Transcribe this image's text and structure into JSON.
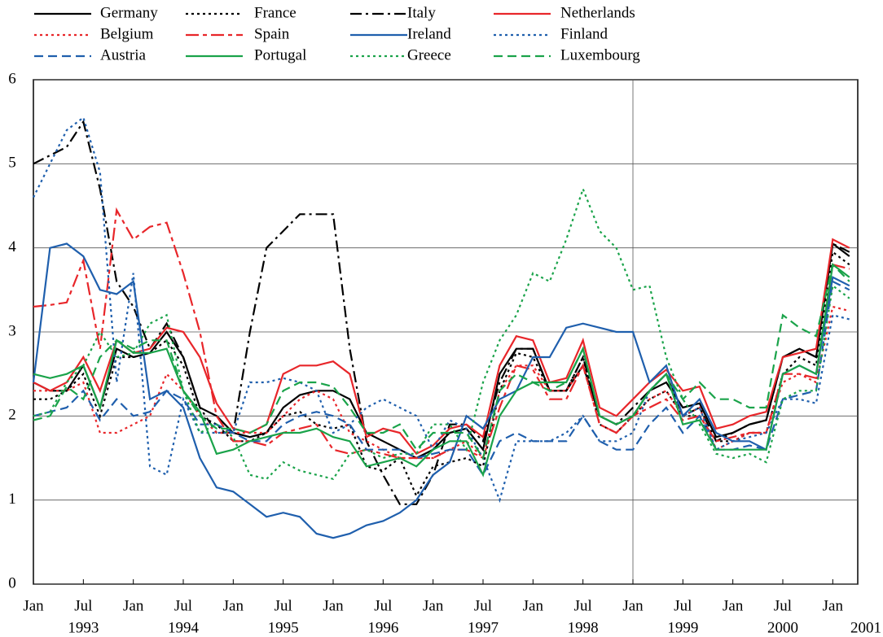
{
  "chart_data": {
    "type": "line",
    "x": [
      "1993-01",
      "1993-03",
      "1993-05",
      "1993-07",
      "1993-09",
      "1993-11",
      "1994-01",
      "1994-03",
      "1994-05",
      "1994-07",
      "1994-09",
      "1994-11",
      "1995-01",
      "1995-03",
      "1995-05",
      "1995-07",
      "1995-09",
      "1995-11",
      "1996-01",
      "1996-03",
      "1996-05",
      "1996-07",
      "1996-09",
      "1996-11",
      "1997-01",
      "1997-03",
      "1997-05",
      "1997-07",
      "1997-09",
      "1997-11",
      "1998-01",
      "1998-03",
      "1998-05",
      "1998-07",
      "1998-09",
      "1998-11",
      "1999-01",
      "1999-03",
      "1999-05",
      "1999-07",
      "1999-09",
      "1999-11",
      "2000-01",
      "2000-03",
      "2000-05",
      "2000-07",
      "2000-09",
      "2000-11",
      "2001-01",
      "2001-03"
    ],
    "xlim": [
      "1993-01",
      "2001-04"
    ],
    "xticks": [
      {
        "value": "1993-01",
        "label": "Jan"
      },
      {
        "value": "1993-07",
        "label": "Jul"
      },
      {
        "value": "1994-01",
        "label": "Jan"
      },
      {
        "value": "1994-07",
        "label": "Jul"
      },
      {
        "value": "1995-01",
        "label": "Jan"
      },
      {
        "value": "1995-07",
        "label": "Jul"
      },
      {
        "value": "1996-01",
        "label": "Jan"
      },
      {
        "value": "1996-07",
        "label": "Jul"
      },
      {
        "value": "1997-01",
        "label": "Jan"
      },
      {
        "value": "1997-07",
        "label": "Jul"
      },
      {
        "value": "1998-01",
        "label": "Jan"
      },
      {
        "value": "1998-07",
        "label": "Jul"
      },
      {
        "value": "1999-01",
        "label": "Jan"
      },
      {
        "value": "1999-07",
        "label": "Jul"
      },
      {
        "value": "2000-01",
        "label": "Jan"
      },
      {
        "value": "2000-07",
        "label": "Jul"
      },
      {
        "value": "2001-01",
        "label": "Jan"
      }
    ],
    "year_labels": [
      {
        "value": "1993-07",
        "label": "1993"
      },
      {
        "value": "1994-07",
        "label": "1994"
      },
      {
        "value": "1995-07",
        "label": "1995"
      },
      {
        "value": "1996-07",
        "label": "1996"
      },
      {
        "value": "1997-07",
        "label": "1997"
      },
      {
        "value": "1998-07",
        "label": "1998"
      },
      {
        "value": "1999-07",
        "label": "1999"
      },
      {
        "value": "2000-07",
        "label": "2000"
      },
      {
        "value": "2001-07",
        "label": "2001"
      }
    ],
    "vline": "1999-01",
    "ylim": [
      0,
      6
    ],
    "yticks": [
      0,
      1,
      2,
      3,
      4,
      5,
      6
    ],
    "grid": true,
    "series": [
      {
        "name": "Germany",
        "color": "#000000",
        "dash": "solid",
        "values": [
          2.4,
          2.3,
          2.3,
          2.6,
          2.1,
          2.8,
          2.7,
          2.75,
          3.0,
          2.7,
          2.1,
          2.0,
          1.8,
          1.75,
          1.8,
          2.1,
          2.25,
          2.3,
          2.3,
          2.2,
          1.8,
          1.7,
          1.6,
          1.5,
          1.6,
          1.8,
          1.85,
          1.6,
          2.5,
          2.8,
          2.8,
          2.3,
          2.3,
          2.6,
          2.0,
          1.9,
          2.0,
          2.3,
          2.4,
          2.1,
          2.15,
          1.75,
          1.8,
          1.9,
          1.95,
          2.7,
          2.8,
          2.7,
          4.05,
          3.9
        ]
      },
      {
        "name": "France",
        "color": "#000000",
        "dash": "dot",
        "values": [
          2.2,
          2.2,
          2.3,
          2.5,
          2.0,
          2.7,
          2.7,
          2.75,
          2.9,
          2.6,
          2.0,
          1.9,
          1.7,
          1.7,
          1.8,
          2.0,
          2.05,
          1.9,
          1.85,
          1.9,
          1.4,
          1.35,
          1.5,
          1.05,
          1.4,
          1.45,
          1.5,
          1.4,
          2.3,
          2.75,
          2.7,
          2.3,
          2.3,
          2.7,
          1.9,
          1.8,
          2.0,
          2.2,
          2.3,
          2.0,
          2.0,
          1.7,
          1.7,
          1.8,
          1.8,
          2.5,
          2.7,
          2.6,
          3.95,
          3.8
        ]
      },
      {
        "name": "Italy",
        "color": "#000000",
        "dash": "dashdot",
        "values": [
          5.0,
          5.1,
          5.2,
          5.5,
          4.7,
          3.6,
          3.3,
          2.8,
          3.1,
          2.7,
          2.1,
          1.8,
          1.8,
          3.0,
          4.0,
          4.2,
          4.4,
          4.4,
          4.4,
          2.8,
          1.7,
          1.3,
          0.95,
          0.95,
          1.3,
          1.9,
          1.9,
          1.7,
          2.4,
          2.8,
          2.8,
          2.3,
          2.3,
          2.7,
          2.0,
          1.9,
          2.1,
          2.3,
          2.5,
          2.0,
          2.1,
          1.7,
          1.8,
          1.9,
          1.95,
          2.7,
          2.8,
          2.7,
          4.05,
          3.95
        ]
      },
      {
        "name": "Netherlands",
        "color": "#e8262a",
        "dash": "solid",
        "values": [
          2.4,
          2.3,
          2.4,
          2.7,
          2.3,
          2.9,
          2.75,
          2.8,
          3.05,
          3.0,
          2.7,
          2.15,
          1.85,
          1.8,
          1.9,
          2.5,
          2.6,
          2.6,
          2.65,
          2.5,
          1.75,
          1.85,
          1.8,
          1.55,
          1.65,
          1.85,
          1.9,
          1.75,
          2.6,
          2.95,
          2.9,
          2.4,
          2.45,
          2.9,
          2.1,
          2.0,
          2.2,
          2.4,
          2.55,
          2.3,
          2.35,
          1.85,
          1.9,
          2.0,
          2.05,
          2.7,
          2.75,
          2.8,
          4.1,
          4.0
        ]
      },
      {
        "name": "Belgium",
        "color": "#e8262a",
        "dash": "dot",
        "values": [
          2.3,
          2.3,
          2.3,
          2.4,
          1.8,
          1.8,
          1.9,
          2.0,
          2.5,
          2.3,
          2.0,
          1.8,
          1.8,
          1.8,
          1.8,
          2.0,
          2.2,
          2.3,
          2.2,
          1.8,
          1.7,
          1.6,
          1.5,
          1.5,
          1.5,
          1.6,
          1.7,
          1.5,
          2.3,
          2.6,
          2.6,
          2.3,
          2.3,
          2.6,
          1.9,
          1.8,
          2.0,
          2.2,
          2.3,
          2.0,
          2.1,
          1.6,
          1.7,
          1.8,
          1.8,
          2.4,
          2.5,
          2.4,
          3.3,
          3.25
        ]
      },
      {
        "name": "Spain",
        "color": "#e8262a",
        "dash": "dashdot2",
        "values": [
          3.3,
          3.32,
          3.35,
          3.85,
          2.8,
          4.45,
          4.1,
          4.25,
          4.3,
          3.7,
          3.0,
          2.0,
          1.7,
          1.7,
          1.65,
          1.8,
          1.85,
          1.9,
          1.6,
          1.55,
          1.6,
          1.55,
          1.5,
          1.5,
          1.5,
          1.6,
          1.6,
          1.5,
          2.1,
          2.6,
          2.55,
          2.2,
          2.2,
          2.6,
          1.9,
          1.8,
          2.0,
          2.1,
          2.2,
          1.95,
          2.0,
          1.7,
          1.75,
          1.8,
          1.8,
          2.5,
          2.5,
          2.45,
          3.8,
          3.75
        ]
      },
      {
        "name": "Ireland",
        "color": "#1f5fad",
        "dash": "solid",
        "values": [
          2.4,
          4.0,
          4.05,
          3.9,
          3.5,
          3.45,
          3.6,
          2.2,
          2.3,
          2.1,
          1.5,
          1.15,
          1.1,
          0.95,
          0.8,
          0.85,
          0.8,
          0.6,
          0.55,
          0.6,
          0.7,
          0.75,
          0.85,
          1.0,
          1.3,
          1.45,
          2.0,
          1.85,
          2.2,
          2.3,
          2.7,
          2.7,
          3.05,
          3.1,
          3.05,
          3.0,
          3.0,
          2.4,
          2.6,
          2.0,
          2.2,
          1.8,
          1.7,
          1.7,
          1.6,
          2.5,
          2.6,
          2.5,
          3.65,
          3.55
        ]
      },
      {
        "name": "Finland",
        "color": "#1f5fad",
        "dash": "dot",
        "values": [
          4.6,
          5.0,
          5.4,
          5.55,
          4.9,
          2.4,
          3.7,
          1.4,
          1.3,
          2.2,
          1.8,
          1.8,
          1.8,
          2.4,
          2.4,
          2.45,
          2.4,
          2.3,
          1.8,
          1.9,
          2.1,
          2.2,
          2.1,
          2.0,
          1.6,
          1.95,
          1.85,
          1.5,
          1.0,
          1.7,
          1.7,
          1.7,
          1.8,
          2.0,
          1.7,
          1.7,
          1.8,
          2.3,
          2.5,
          2.0,
          2.1,
          1.6,
          1.7,
          1.75,
          1.8,
          2.2,
          2.2,
          2.15,
          3.2,
          3.15
        ]
      },
      {
        "name": "Austria",
        "color": "#1f5fad",
        "dash": "dash",
        "values": [
          2.0,
          2.05,
          2.1,
          2.3,
          1.95,
          2.2,
          2.0,
          2.05,
          2.3,
          2.2,
          1.9,
          1.9,
          1.8,
          1.7,
          1.7,
          1.9,
          2.0,
          2.05,
          2.0,
          1.9,
          1.6,
          1.6,
          1.6,
          1.5,
          1.55,
          1.6,
          1.6,
          1.3,
          1.7,
          1.8,
          1.7,
          1.7,
          1.7,
          2.0,
          1.7,
          1.6,
          1.6,
          1.9,
          2.1,
          1.8,
          2.0,
          1.6,
          1.6,
          1.65,
          1.6,
          2.2,
          2.25,
          2.3,
          3.6,
          3.5
        ]
      },
      {
        "name": "Portugal",
        "color": "#1aa34a",
        "dash": "solid",
        "values": [
          2.5,
          2.45,
          2.5,
          2.6,
          2.1,
          2.9,
          2.75,
          2.75,
          2.8,
          2.3,
          2.05,
          1.55,
          1.6,
          1.7,
          1.75,
          1.8,
          1.8,
          1.85,
          1.75,
          1.7,
          1.4,
          1.45,
          1.5,
          1.4,
          1.6,
          1.7,
          1.7,
          1.3,
          2.0,
          2.3,
          2.4,
          2.4,
          2.4,
          2.8,
          2.0,
          1.9,
          2.0,
          2.3,
          2.5,
          1.9,
          1.95,
          1.6,
          1.6,
          1.6,
          1.6,
          2.5,
          2.6,
          2.5,
          3.8,
          3.65
        ]
      },
      {
        "name": "Greece",
        "color": "#1aa34a",
        "dash": "dot",
        "values": [
          2.0,
          2.05,
          2.4,
          2.6,
          3.0,
          2.7,
          2.75,
          3.1,
          3.2,
          2.3,
          1.8,
          1.9,
          1.75,
          1.3,
          1.25,
          1.45,
          1.35,
          1.3,
          1.25,
          1.55,
          1.6,
          1.5,
          1.55,
          1.55,
          1.9,
          1.9,
          1.6,
          2.4,
          2.9,
          3.2,
          3.7,
          3.6,
          4.1,
          4.7,
          4.2,
          4.0,
          3.5,
          3.55,
          2.7,
          2.2,
          1.9,
          1.55,
          1.5,
          1.55,
          1.45,
          2.2,
          2.3,
          2.3,
          3.55,
          3.4
        ]
      },
      {
        "name": "Luxembourg",
        "color": "#1aa34a",
        "dash": "dash",
        "values": [
          1.95,
          2.0,
          2.35,
          2.2,
          2.7,
          2.9,
          2.8,
          2.9,
          2.9,
          2.3,
          2.0,
          1.85,
          1.85,
          1.8,
          1.9,
          2.3,
          2.4,
          2.4,
          2.35,
          2.1,
          1.8,
          1.8,
          1.9,
          1.6,
          1.8,
          1.8,
          1.8,
          1.5,
          2.3,
          2.5,
          2.4,
          2.3,
          2.4,
          2.8,
          2.0,
          1.9,
          2.0,
          2.3,
          2.5,
          2.2,
          2.4,
          2.2,
          2.2,
          2.1,
          2.1,
          3.2,
          3.05,
          2.95,
          3.8,
          3.6
        ]
      }
    ]
  }
}
